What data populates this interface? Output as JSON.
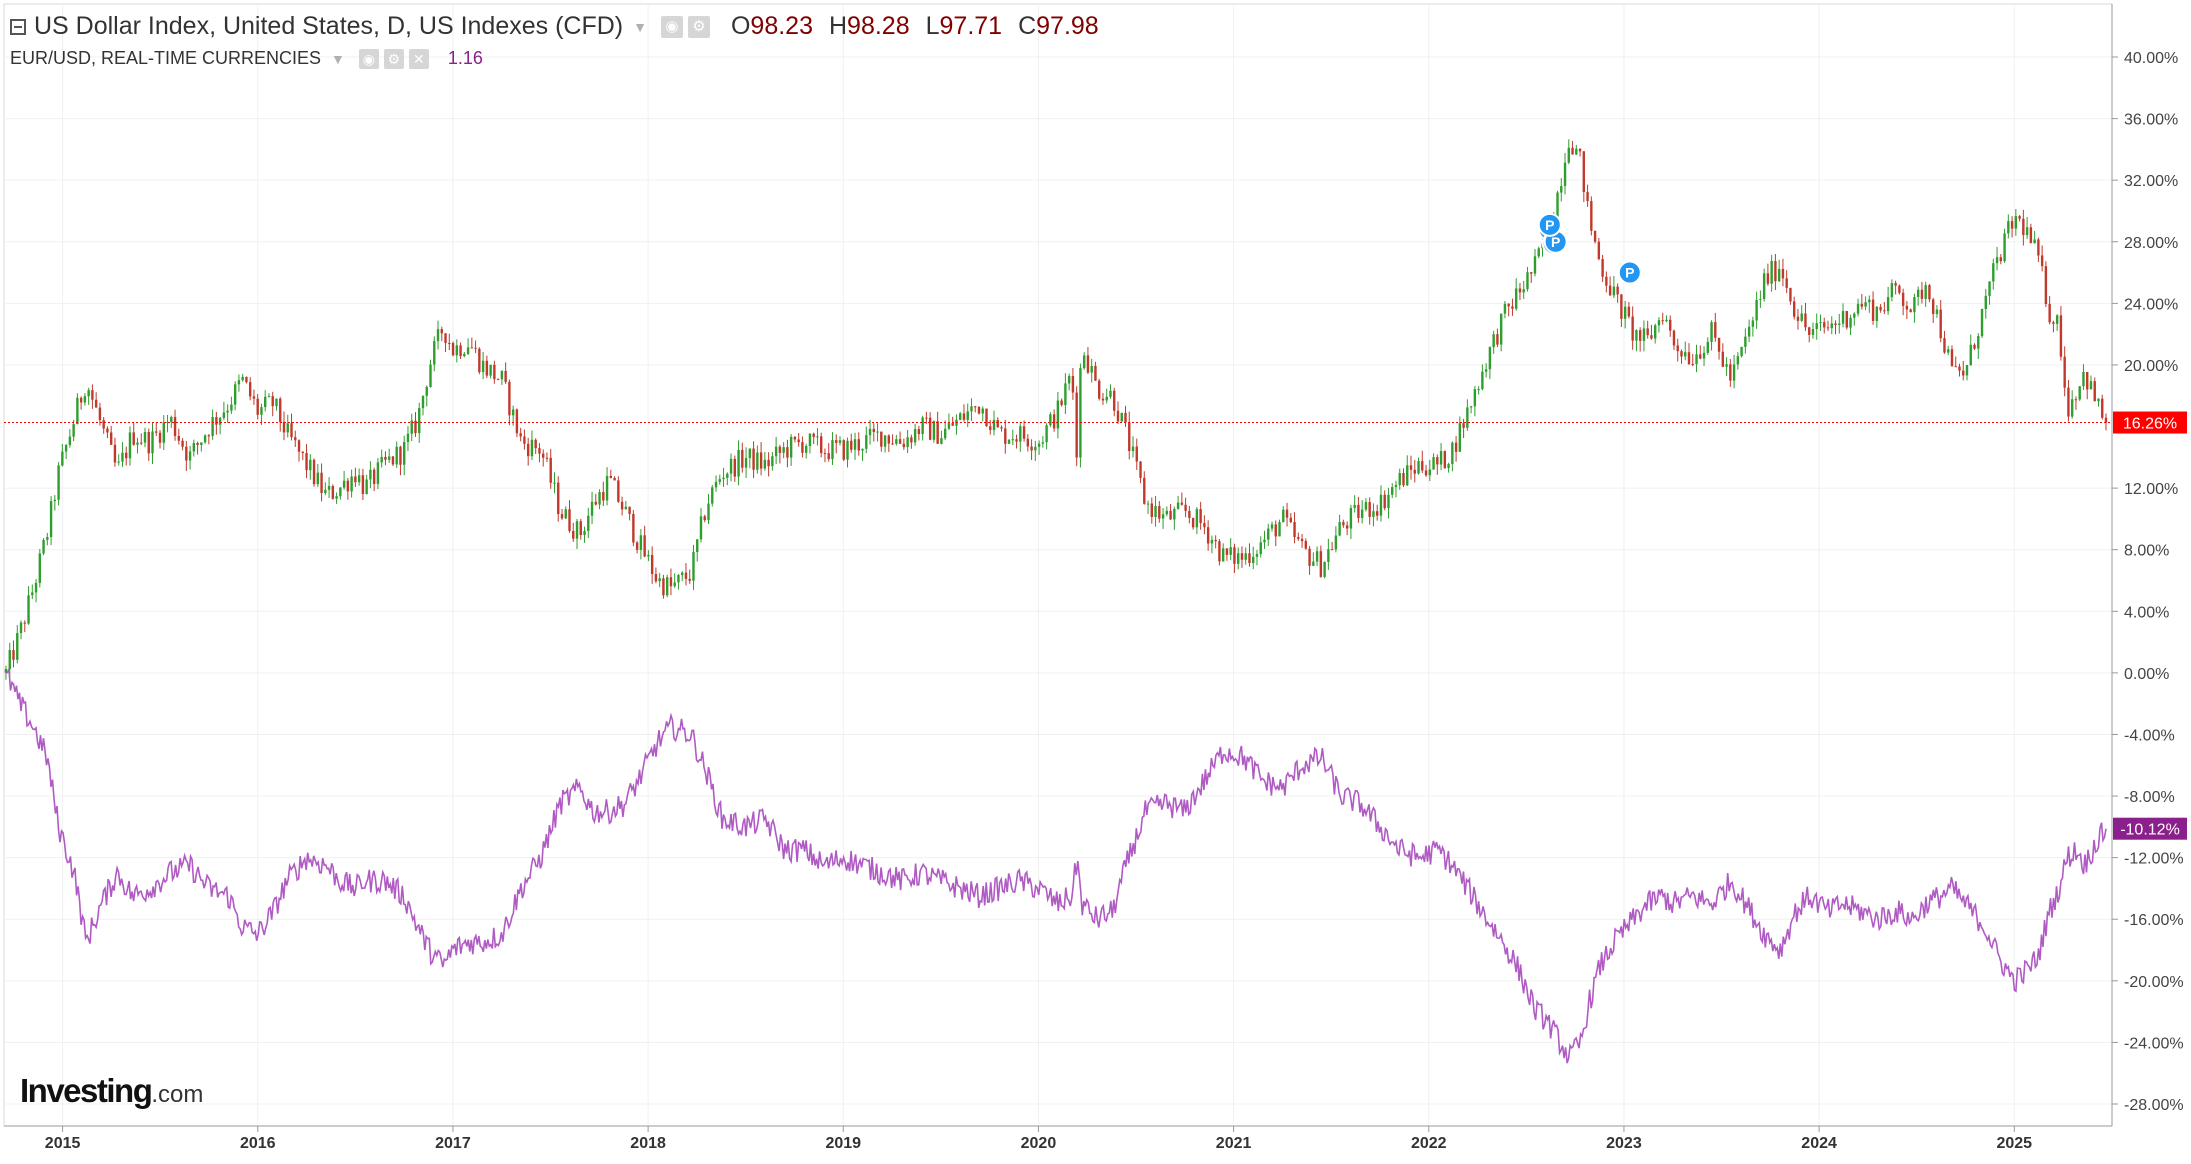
{
  "legend": {
    "main_title": "US Dollar Index, United States, D, US Indexes (CFD)",
    "ohlc": {
      "open_label": "O",
      "open": "98.23",
      "high_label": "H",
      "high": "98.28",
      "low_label": "L",
      "low": "97.71",
      "close_label": "C",
      "close": "97.98"
    },
    "secondary_title": "EUR/USD, REAL-TIME CURRENCIES",
    "secondary_value": "1.16"
  },
  "brand": {
    "name": "Investing",
    "suffix": ".com"
  },
  "icons": [
    "collapse-icon",
    "dropdown-caret-icon",
    "visibility-icon",
    "settings-icon",
    "close-icon",
    "event-marker-icon"
  ],
  "colors": {
    "up_candle": "#2e9e2e",
    "down_candle": "#c0392b",
    "secondary_line": "#b05bc4",
    "last_price_line": "#ff0000",
    "main_badge": "#ff0000",
    "secondary_badge": "#8b1f8b",
    "event_marker": "#2196f3",
    "grid": "#f0f0f0",
    "axis_text": "#444444"
  },
  "chart_data": {
    "type": "line",
    "comparison_mode": "percent change",
    "y_axis_position": "right",
    "ylim": [
      -30,
      44
    ],
    "y_ticks": [
      "40.00%",
      "36.00%",
      "32.00%",
      "28.00%",
      "24.00%",
      "20.00%",
      "12.00%",
      "8.00%",
      "4.00%",
      "0.00%",
      "-4.00%",
      "-8.00%",
      "-12.00%",
      "-16.00%",
      "-20.00%",
      "-24.00%",
      "-28.00%"
    ],
    "y_tick_values": [
      40,
      36,
      32,
      28,
      24,
      20,
      12,
      8,
      4,
      0,
      -4,
      -8,
      -12,
      -16,
      -20,
      -24,
      -28
    ],
    "x_ticks": [
      "2015",
      "2016",
      "2017",
      "2018",
      "2019",
      "2020",
      "2021",
      "2022",
      "2023",
      "2024",
      "2025"
    ],
    "xlim": [
      2014.71,
      2025.47
    ],
    "grid": true,
    "series": [
      {
        "name": "US Dollar Index",
        "style": "candlestick",
        "last_value_label": "16.26%",
        "last_value": 16.26,
        "points": [
          [
            2014.71,
            0
          ],
          [
            2014.78,
            2.5
          ],
          [
            2014.85,
            5.5
          ],
          [
            2014.92,
            9
          ],
          [
            2014.98,
            13
          ],
          [
            2015.06,
            16.5
          ],
          [
            2015.12,
            19
          ],
          [
            2015.2,
            16
          ],
          [
            2015.28,
            13
          ],
          [
            2015.36,
            15.5
          ],
          [
            2015.45,
            15
          ],
          [
            2015.55,
            16.5
          ],
          [
            2015.65,
            14
          ],
          [
            2015.75,
            16
          ],
          [
            2015.85,
            17.5
          ],
          [
            2015.92,
            19
          ],
          [
            2016.0,
            17
          ],
          [
            2016.08,
            17.5
          ],
          [
            2016.15,
            15.5
          ],
          [
            2016.25,
            13.5
          ],
          [
            2016.35,
            11.5
          ],
          [
            2016.42,
            12
          ],
          [
            2016.5,
            13
          ],
          [
            2016.55,
            12
          ],
          [
            2016.65,
            13.5
          ],
          [
            2016.75,
            14.5
          ],
          [
            2016.82,
            16.5
          ],
          [
            2016.88,
            20
          ],
          [
            2016.95,
            22.5
          ],
          [
            2017.0,
            21
          ],
          [
            2017.08,
            21.5
          ],
          [
            2017.15,
            20
          ],
          [
            2017.25,
            19
          ],
          [
            2017.35,
            15
          ],
          [
            2017.45,
            14.5
          ],
          [
            2017.55,
            10.5
          ],
          [
            2017.65,
            9
          ],
          [
            2017.72,
            11
          ],
          [
            2017.8,
            12.5
          ],
          [
            2017.88,
            10.5
          ],
          [
            2017.95,
            8.5
          ],
          [
            2018.05,
            6
          ],
          [
            2018.12,
            5.5
          ],
          [
            2018.22,
            6.5
          ],
          [
            2018.3,
            11
          ],
          [
            2018.38,
            13
          ],
          [
            2018.5,
            14
          ],
          [
            2018.6,
            13.5
          ],
          [
            2018.7,
            14.5
          ],
          [
            2018.8,
            15
          ],
          [
            2018.9,
            14.5
          ],
          [
            2019.0,
            14.5
          ],
          [
            2019.1,
            15
          ],
          [
            2019.2,
            15.5
          ],
          [
            2019.3,
            15
          ],
          [
            2019.4,
            16
          ],
          [
            2019.5,
            15.5
          ],
          [
            2019.6,
            16.5
          ],
          [
            2019.7,
            17.5
          ],
          [
            2019.8,
            15.5
          ],
          [
            2019.9,
            15.5
          ],
          [
            2020.0,
            15
          ],
          [
            2020.1,
            17
          ],
          [
            2020.17,
            19.5
          ],
          [
            2020.2,
            14
          ],
          [
            2020.22,
            21.5
          ],
          [
            2020.3,
            18.5
          ],
          [
            2020.38,
            18
          ],
          [
            2020.45,
            15.5
          ],
          [
            2020.55,
            11
          ],
          [
            2020.65,
            10
          ],
          [
            2020.75,
            10.5
          ],
          [
            2020.85,
            9.5
          ],
          [
            2020.95,
            7.5
          ],
          [
            2021.05,
            7.5
          ],
          [
            2021.15,
            8.5
          ],
          [
            2021.25,
            10
          ],
          [
            2021.35,
            8
          ],
          [
            2021.45,
            7
          ],
          [
            2021.55,
            9.5
          ],
          [
            2021.65,
            10.5
          ],
          [
            2021.75,
            11
          ],
          [
            2021.85,
            12.5
          ],
          [
            2021.95,
            13.5
          ],
          [
            2022.05,
            13.5
          ],
          [
            2022.12,
            14.5
          ],
          [
            2022.2,
            17
          ],
          [
            2022.3,
            20.5
          ],
          [
            2022.38,
            23
          ],
          [
            2022.45,
            24.5
          ],
          [
            2022.55,
            26.5
          ],
          [
            2022.6,
            28.5
          ],
          [
            2022.65,
            30.5
          ],
          [
            2022.72,
            35
          ],
          [
            2022.78,
            33
          ],
          [
            2022.82,
            29.5
          ],
          [
            2022.88,
            26.5
          ],
          [
            2022.95,
            24.5
          ],
          [
            2023.05,
            22
          ],
          [
            2023.12,
            21.5
          ],
          [
            2023.2,
            23.5
          ],
          [
            2023.25,
            21.5
          ],
          [
            2023.35,
            20.5
          ],
          [
            2023.45,
            22
          ],
          [
            2023.55,
            19
          ],
          [
            2023.65,
            22.5
          ],
          [
            2023.72,
            25.5
          ],
          [
            2023.8,
            26.5
          ],
          [
            2023.88,
            23.5
          ],
          [
            2023.95,
            22
          ],
          [
            2024.05,
            22.5
          ],
          [
            2024.12,
            23
          ],
          [
            2024.22,
            24
          ],
          [
            2024.3,
            23.5
          ],
          [
            2024.4,
            25
          ],
          [
            2024.48,
            23.5
          ],
          [
            2024.55,
            25.5
          ],
          [
            2024.62,
            22.5
          ],
          [
            2024.68,
            19.5
          ],
          [
            2024.75,
            19.5
          ],
          [
            2024.85,
            24
          ],
          [
            2024.92,
            27
          ],
          [
            2025.0,
            29.5
          ],
          [
            2025.05,
            29
          ],
          [
            2025.12,
            27
          ],
          [
            2025.18,
            23.5
          ],
          [
            2025.23,
            22.5
          ],
          [
            2025.27,
            17
          ],
          [
            2025.32,
            18.5
          ],
          [
            2025.36,
            19.5
          ],
          [
            2025.42,
            17.5
          ],
          [
            2025.47,
            16.26
          ]
        ]
      },
      {
        "name": "EUR/USD",
        "style": "line",
        "last_value_label": "-10.12%",
        "last_value": -10.12,
        "points": [
          [
            2014.71,
            0
          ],
          [
            2014.78,
            -2
          ],
          [
            2014.85,
            -3.5
          ],
          [
            2014.92,
            -5.5
          ],
          [
            2014.98,
            -10
          ],
          [
            2015.06,
            -13
          ],
          [
            2015.12,
            -17.5
          ],
          [
            2015.2,
            -15
          ],
          [
            2015.28,
            -13
          ],
          [
            2015.36,
            -14.5
          ],
          [
            2015.45,
            -14
          ],
          [
            2015.55,
            -13
          ],
          [
            2015.65,
            -12.5
          ],
          [
            2015.75,
            -14
          ],
          [
            2015.85,
            -14.5
          ],
          [
            2015.92,
            -16.5
          ],
          [
            2016.0,
            -17
          ],
          [
            2016.08,
            -15.5
          ],
          [
            2016.15,
            -13.5
          ],
          [
            2016.25,
            -12
          ],
          [
            2016.35,
            -12.5
          ],
          [
            2016.42,
            -13.5
          ],
          [
            2016.5,
            -14
          ],
          [
            2016.55,
            -13.5
          ],
          [
            2016.65,
            -13.5
          ],
          [
            2016.75,
            -14.5
          ],
          [
            2016.82,
            -16.5
          ],
          [
            2016.88,
            -18
          ],
          [
            2016.95,
            -19
          ],
          [
            2017.0,
            -18
          ],
          [
            2017.08,
            -17.5
          ],
          [
            2017.15,
            -17.5
          ],
          [
            2017.25,
            -17
          ],
          [
            2017.35,
            -14
          ],
          [
            2017.45,
            -12
          ],
          [
            2017.55,
            -8.5
          ],
          [
            2017.65,
            -7.5
          ],
          [
            2017.72,
            -9
          ],
          [
            2017.8,
            -9
          ],
          [
            2017.88,
            -8.5
          ],
          [
            2017.95,
            -7
          ],
          [
            2018.05,
            -4.5
          ],
          [
            2018.12,
            -3.5
          ],
          [
            2018.22,
            -4
          ],
          [
            2018.3,
            -6.5
          ],
          [
            2018.38,
            -9.5
          ],
          [
            2018.5,
            -10
          ],
          [
            2018.6,
            -9.5
          ],
          [
            2018.7,
            -11.5
          ],
          [
            2018.8,
            -11.5
          ],
          [
            2018.9,
            -12.5
          ],
          [
            2019.0,
            -12
          ],
          [
            2019.1,
            -12.5
          ],
          [
            2019.2,
            -13
          ],
          [
            2019.3,
            -13.5
          ],
          [
            2019.4,
            -13
          ],
          [
            2019.5,
            -13.5
          ],
          [
            2019.6,
            -14
          ],
          [
            2019.7,
            -14.5
          ],
          [
            2019.8,
            -14
          ],
          [
            2019.9,
            -13.5
          ],
          [
            2020.0,
            -14
          ],
          [
            2020.1,
            -15
          ],
          [
            2020.17,
            -14.5
          ],
          [
            2020.2,
            -12
          ],
          [
            2020.22,
            -15
          ],
          [
            2020.3,
            -16
          ],
          [
            2020.38,
            -15.5
          ],
          [
            2020.45,
            -12.5
          ],
          [
            2020.55,
            -9
          ],
          [
            2020.65,
            -8.5
          ],
          [
            2020.75,
            -9
          ],
          [
            2020.85,
            -7
          ],
          [
            2020.95,
            -5
          ],
          [
            2021.05,
            -5.5
          ],
          [
            2021.15,
            -7
          ],
          [
            2021.25,
            -7.5
          ],
          [
            2021.35,
            -6
          ],
          [
            2021.45,
            -5.5
          ],
          [
            2021.55,
            -8
          ],
          [
            2021.65,
            -8.5
          ],
          [
            2021.75,
            -10
          ],
          [
            2021.85,
            -11.5
          ],
          [
            2021.95,
            -12
          ],
          [
            2022.05,
            -11.5
          ],
          [
            2022.12,
            -12.5
          ],
          [
            2022.2,
            -14
          ],
          [
            2022.3,
            -16
          ],
          [
            2022.38,
            -17.5
          ],
          [
            2022.45,
            -19
          ],
          [
            2022.55,
            -22
          ],
          [
            2022.6,
            -22.5
          ],
          [
            2022.65,
            -23.5
          ],
          [
            2022.72,
            -25
          ],
          [
            2022.78,
            -24
          ],
          [
            2022.82,
            -21.5
          ],
          [
            2022.88,
            -19
          ],
          [
            2022.95,
            -17.5
          ],
          [
            2023.05,
            -16
          ],
          [
            2023.12,
            -15
          ],
          [
            2023.2,
            -14.5
          ],
          [
            2023.25,
            -15
          ],
          [
            2023.35,
            -14.5
          ],
          [
            2023.45,
            -15
          ],
          [
            2023.55,
            -13.5
          ],
          [
            2023.65,
            -15.5
          ],
          [
            2023.72,
            -17
          ],
          [
            2023.8,
            -18
          ],
          [
            2023.88,
            -15.5
          ],
          [
            2023.95,
            -14.5
          ],
          [
            2024.05,
            -15.5
          ],
          [
            2024.12,
            -15
          ],
          [
            2024.22,
            -15.5
          ],
          [
            2024.3,
            -16
          ],
          [
            2024.4,
            -15.5
          ],
          [
            2024.48,
            -16
          ],
          [
            2024.55,
            -15
          ],
          [
            2024.62,
            -14.5
          ],
          [
            2024.68,
            -14
          ],
          [
            2024.75,
            -15
          ],
          [
            2024.85,
            -16.5
          ],
          [
            2024.92,
            -18.5
          ],
          [
            2025.0,
            -20
          ],
          [
            2025.05,
            -19.5
          ],
          [
            2025.12,
            -18.5
          ],
          [
            2025.18,
            -15.5
          ],
          [
            2025.23,
            -14
          ],
          [
            2025.27,
            -12
          ],
          [
            2025.32,
            -11.5
          ],
          [
            2025.36,
            -12.5
          ],
          [
            2025.42,
            -11
          ],
          [
            2025.47,
            -10.12
          ]
        ]
      }
    ],
    "markers": [
      {
        "label": "P",
        "x": 2022.62,
        "y": 28.8
      },
      {
        "label": "P",
        "x": 2022.64,
        "y": 27.9
      },
      {
        "label": "P",
        "x": 2022.65,
        "y": 28.0
      },
      {
        "label": "P",
        "x": 2022.62,
        "y": 29.1
      },
      {
        "label": "P",
        "x": 2023.03,
        "y": 26.0
      }
    ]
  }
}
